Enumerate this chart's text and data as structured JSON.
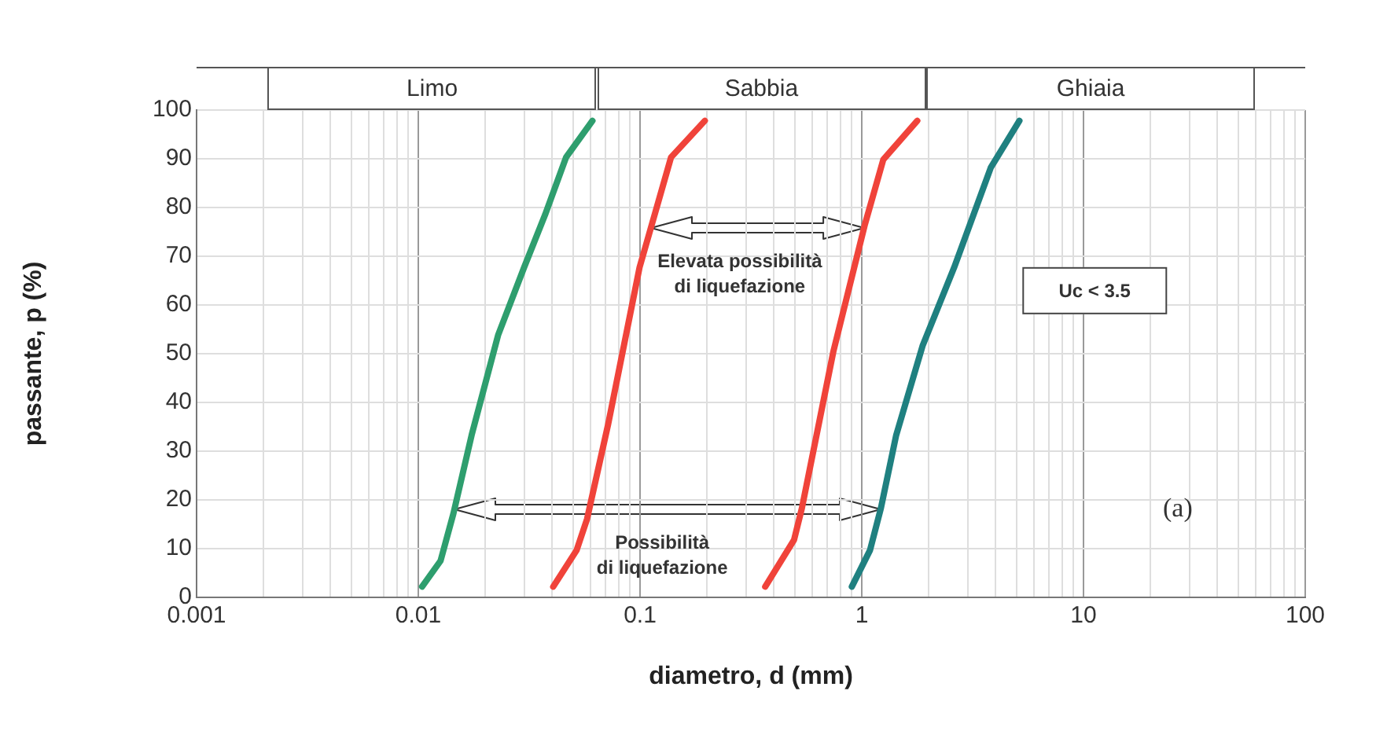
{
  "chart_data": {
    "type": "line",
    "xlabel": "diametro, d (mm)",
    "ylabel": "passante, p (%)",
    "log": "x",
    "grid": true,
    "legend": false,
    "marker": "none",
    "line_style": "solid",
    "xlim": [
      0.001,
      100
    ],
    "ylim": [
      0,
      100
    ],
    "xticks": [
      0.001,
      {
        "value": 0.002,
        "label": null
      },
      {
        "value": 0.003,
        "label": null
      },
      {
        "value": 0.004,
        "label": null
      },
      {
        "value": 0.005,
        "label": null
      },
      {
        "value": 0.006,
        "label": null
      },
      {
        "value": 0.007,
        "label": null
      },
      {
        "value": 0.008,
        "label": null
      },
      {
        "value": 0.009,
        "label": null
      },
      0.01,
      {
        "value": 0.02,
        "label": null
      },
      {
        "value": 0.03,
        "label": null
      },
      {
        "value": 0.04,
        "label": null
      },
      {
        "value": 0.05,
        "label": null
      },
      {
        "value": 0.06,
        "label": null
      },
      {
        "value": 0.07,
        "label": null
      },
      {
        "value": 0.08,
        "label": null
      },
      {
        "value": 0.09,
        "label": null
      },
      0.1,
      {
        "value": 0.2,
        "label": null
      },
      {
        "value": 0.3,
        "label": null
      },
      {
        "value": 0.4,
        "label": null
      },
      {
        "value": 0.5,
        "label": null
      },
      {
        "value": 0.6,
        "label": null
      },
      {
        "value": 0.7,
        "label": null
      },
      {
        "value": 0.8,
        "label": null
      },
      {
        "value": 0.9,
        "label": null
      },
      1,
      {
        "value": 2,
        "label": null
      },
      {
        "value": 3,
        "label": null
      },
      {
        "value": 4,
        "label": null
      },
      {
        "value": 5,
        "label": null
      },
      {
        "value": 6,
        "label": null
      },
      {
        "value": 7,
        "label": null
      },
      {
        "value": 8,
        "label": null
      },
      {
        "value": 9,
        "label": null
      },
      10,
      {
        "value": 20,
        "label": null
      },
      {
        "value": 30,
        "label": null
      },
      {
        "value": 40,
        "label": null
      },
      {
        "value": 50,
        "label": null
      },
      {
        "value": 60,
        "label": null
      },
      {
        "value": 70,
        "label": null
      },
      {
        "value": 80,
        "label": null
      },
      {
        "value": 90,
        "label": null
      },
      100
    ],
    "yticks": [
      0,
      10,
      20,
      30,
      40,
      50,
      60,
      70,
      80,
      90,
      100
    ],
    "series": [
      {
        "color": "#2e9e6e",
        "x": [
          0.0104,
          0.0126,
          0.0144,
          0.0174,
          0.0229,
          0.03,
          0.0373,
          0.0464,
          0.061
        ],
        "values": [
          2.2,
          7.5,
          17.2,
          33.3,
          53.8,
          67.7,
          78.5,
          90.3,
          97.8
        ]
      },
      {
        "color": "#f0433a",
        "x": [
          0.0406,
          0.0518,
          0.0577,
          0.0718,
          0.0995,
          0.138,
          0.196
        ],
        "values": [
          2.2,
          9.7,
          16.1,
          35.5,
          67.7,
          90.3,
          97.8
        ]
      },
      {
        "color": "#f0433a",
        "x": [
          0.367,
          0.495,
          0.537,
          0.745,
          1.03,
          1.25,
          1.78
        ],
        "values": [
          2.2,
          11.8,
          18.3,
          50.5,
          76.3,
          89.8,
          97.8
        ]
      },
      {
        "color": "#1f8080",
        "x": [
          0.902,
          1.09,
          1.22,
          1.43,
          1.88,
          2.61,
          3.82,
          5.14
        ],
        "values": [
          2.2,
          9.7,
          18.3,
          33.3,
          51.6,
          67.7,
          88.2,
          97.8
        ]
      }
    ],
    "annotations": [
      "Limo",
      "Sabbia",
      "Ghiaia",
      "Elevata possibilità\ndi liquefazione",
      "Possibilità\ndi liquefazione",
      "Uc < 3.5",
      "(a)"
    ]
  }
}
